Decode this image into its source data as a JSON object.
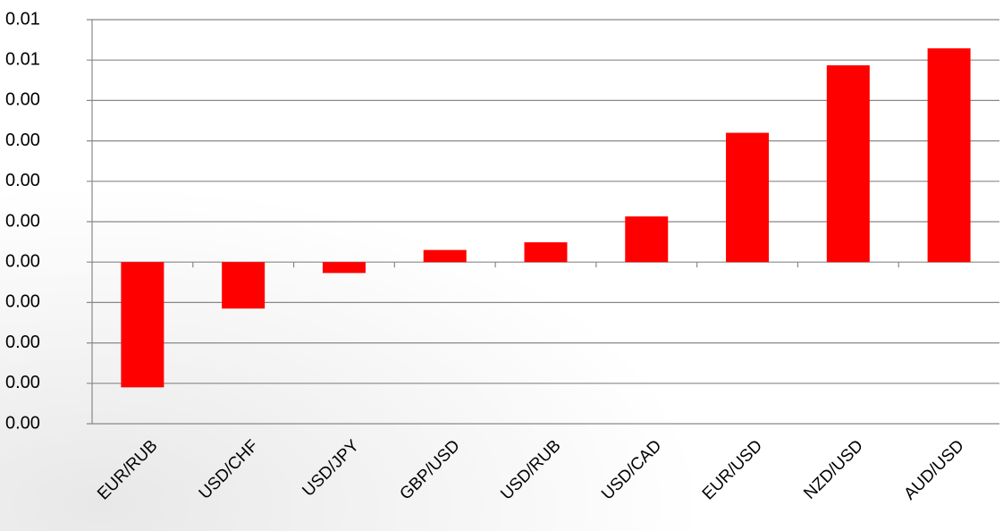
{
  "chart_data": {
    "type": "bar",
    "categories": [
      "EUR/RUB",
      "USD/CHF",
      "USD/JPY",
      "GBP/USD",
      "USD/RUB",
      "USD/CAD",
      "EUR/USD",
      "NZD/USD",
      "AUD/USD"
    ],
    "values": [
      -0.0031,
      -0.00115,
      -0.00027,
      0.0003,
      0.00049,
      0.00113,
      0.0032,
      0.00487,
      0.00529
    ],
    "color": "#ff0000",
    "ylim": [
      -0.004,
      0.006
    ],
    "yticks": [
      {
        "value": -0.004,
        "label": "0.00"
      },
      {
        "value": -0.003,
        "label": "0.00"
      },
      {
        "value": -0.002,
        "label": "0.00"
      },
      {
        "value": -0.001,
        "label": "0.00"
      },
      {
        "value": 0,
        "label": "0.00"
      },
      {
        "value": 0.001,
        "label": "0.00"
      },
      {
        "value": 0.002,
        "label": "0.00"
      },
      {
        "value": 0.003,
        "label": "0.00"
      },
      {
        "value": 0.004,
        "label": "0.00"
      },
      {
        "value": 0.005,
        "label": "0.01"
      },
      {
        "value": 0.006,
        "label": "0.01"
      }
    ],
    "grid": true
  }
}
